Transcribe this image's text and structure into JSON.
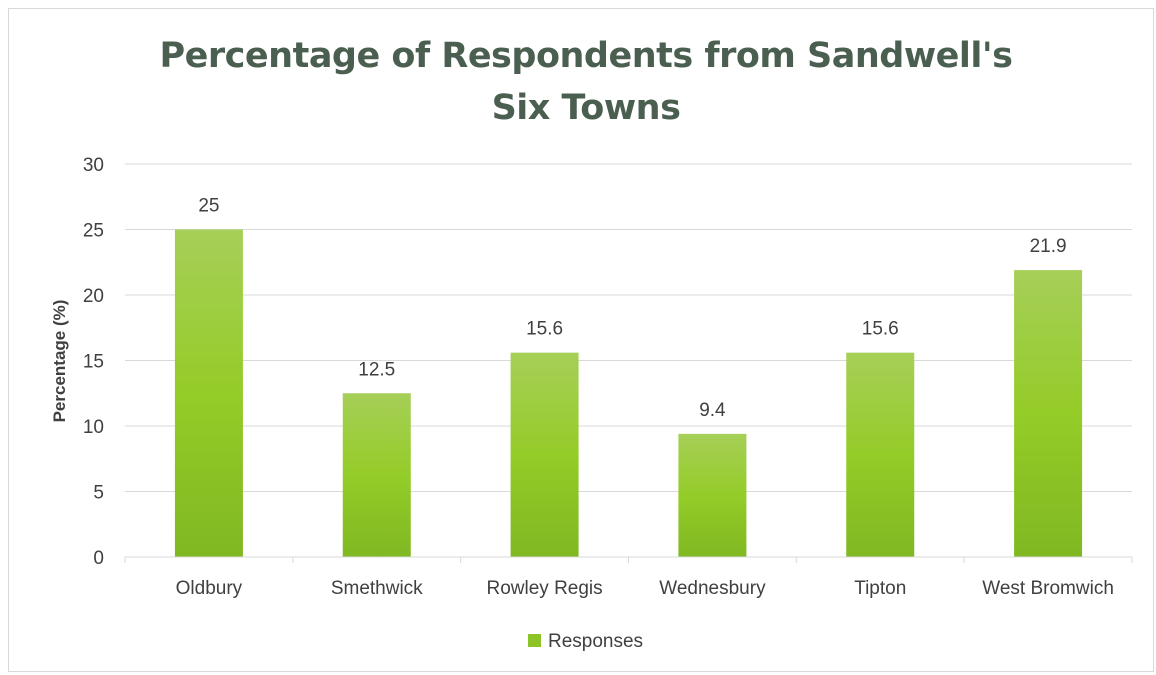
{
  "chart_data": {
    "type": "bar",
    "title": "Percentage of Respondents from Sandwell's Six Towns",
    "ylabel": "Percentage (%)",
    "xlabel": "",
    "categories": [
      "Oldbury",
      "Smethwick",
      "Rowley Regis",
      "Wednesbury",
      "Tipton",
      "West Bromwich"
    ],
    "series": [
      {
        "name": "Responses",
        "values": [
          25,
          12.5,
          15.6,
          9.4,
          15.6,
          21.9
        ],
        "color": "#8cc326"
      }
    ],
    "data_labels": [
      "25",
      "12.5",
      "15.6",
      "9.4",
      "15.6",
      "21.9"
    ],
    "ylim": [
      0,
      30
    ],
    "yticks": [
      0,
      5,
      10,
      15,
      20,
      25,
      30
    ],
    "grid": true,
    "legend_position": "bottom"
  },
  "colors": {
    "title": "#4a5f50",
    "bar_top": "#a6cf58",
    "bar_mid": "#94cc28",
    "bar_bottom": "#80b822",
    "gridline": "#d9d9d9",
    "axis_text": "#404040"
  }
}
